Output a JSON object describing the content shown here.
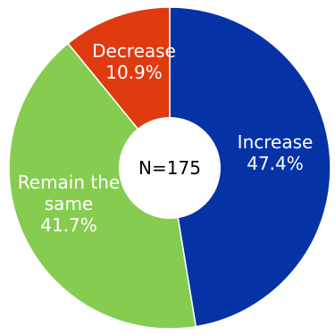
{
  "chart_data": {
    "type": "pie",
    "subtype": "donut",
    "center_label": "N=175",
    "slices": [
      {
        "category_lines": [
          "Increase"
        ],
        "percent_text": "47.4%",
        "value": 47.4,
        "color": "#0533A6"
      },
      {
        "category_lines": [
          "Remain the",
          "same"
        ],
        "percent_text": "41.7%",
        "value": 41.7,
        "color": "#86CC50"
      },
      {
        "category_lines": [
          "Decrease"
        ],
        "percent_text": "10.9%",
        "value": 10.9,
        "color": "#E03A10"
      }
    ],
    "start_angle": "top",
    "direction": "clockwise",
    "legend": "none"
  }
}
